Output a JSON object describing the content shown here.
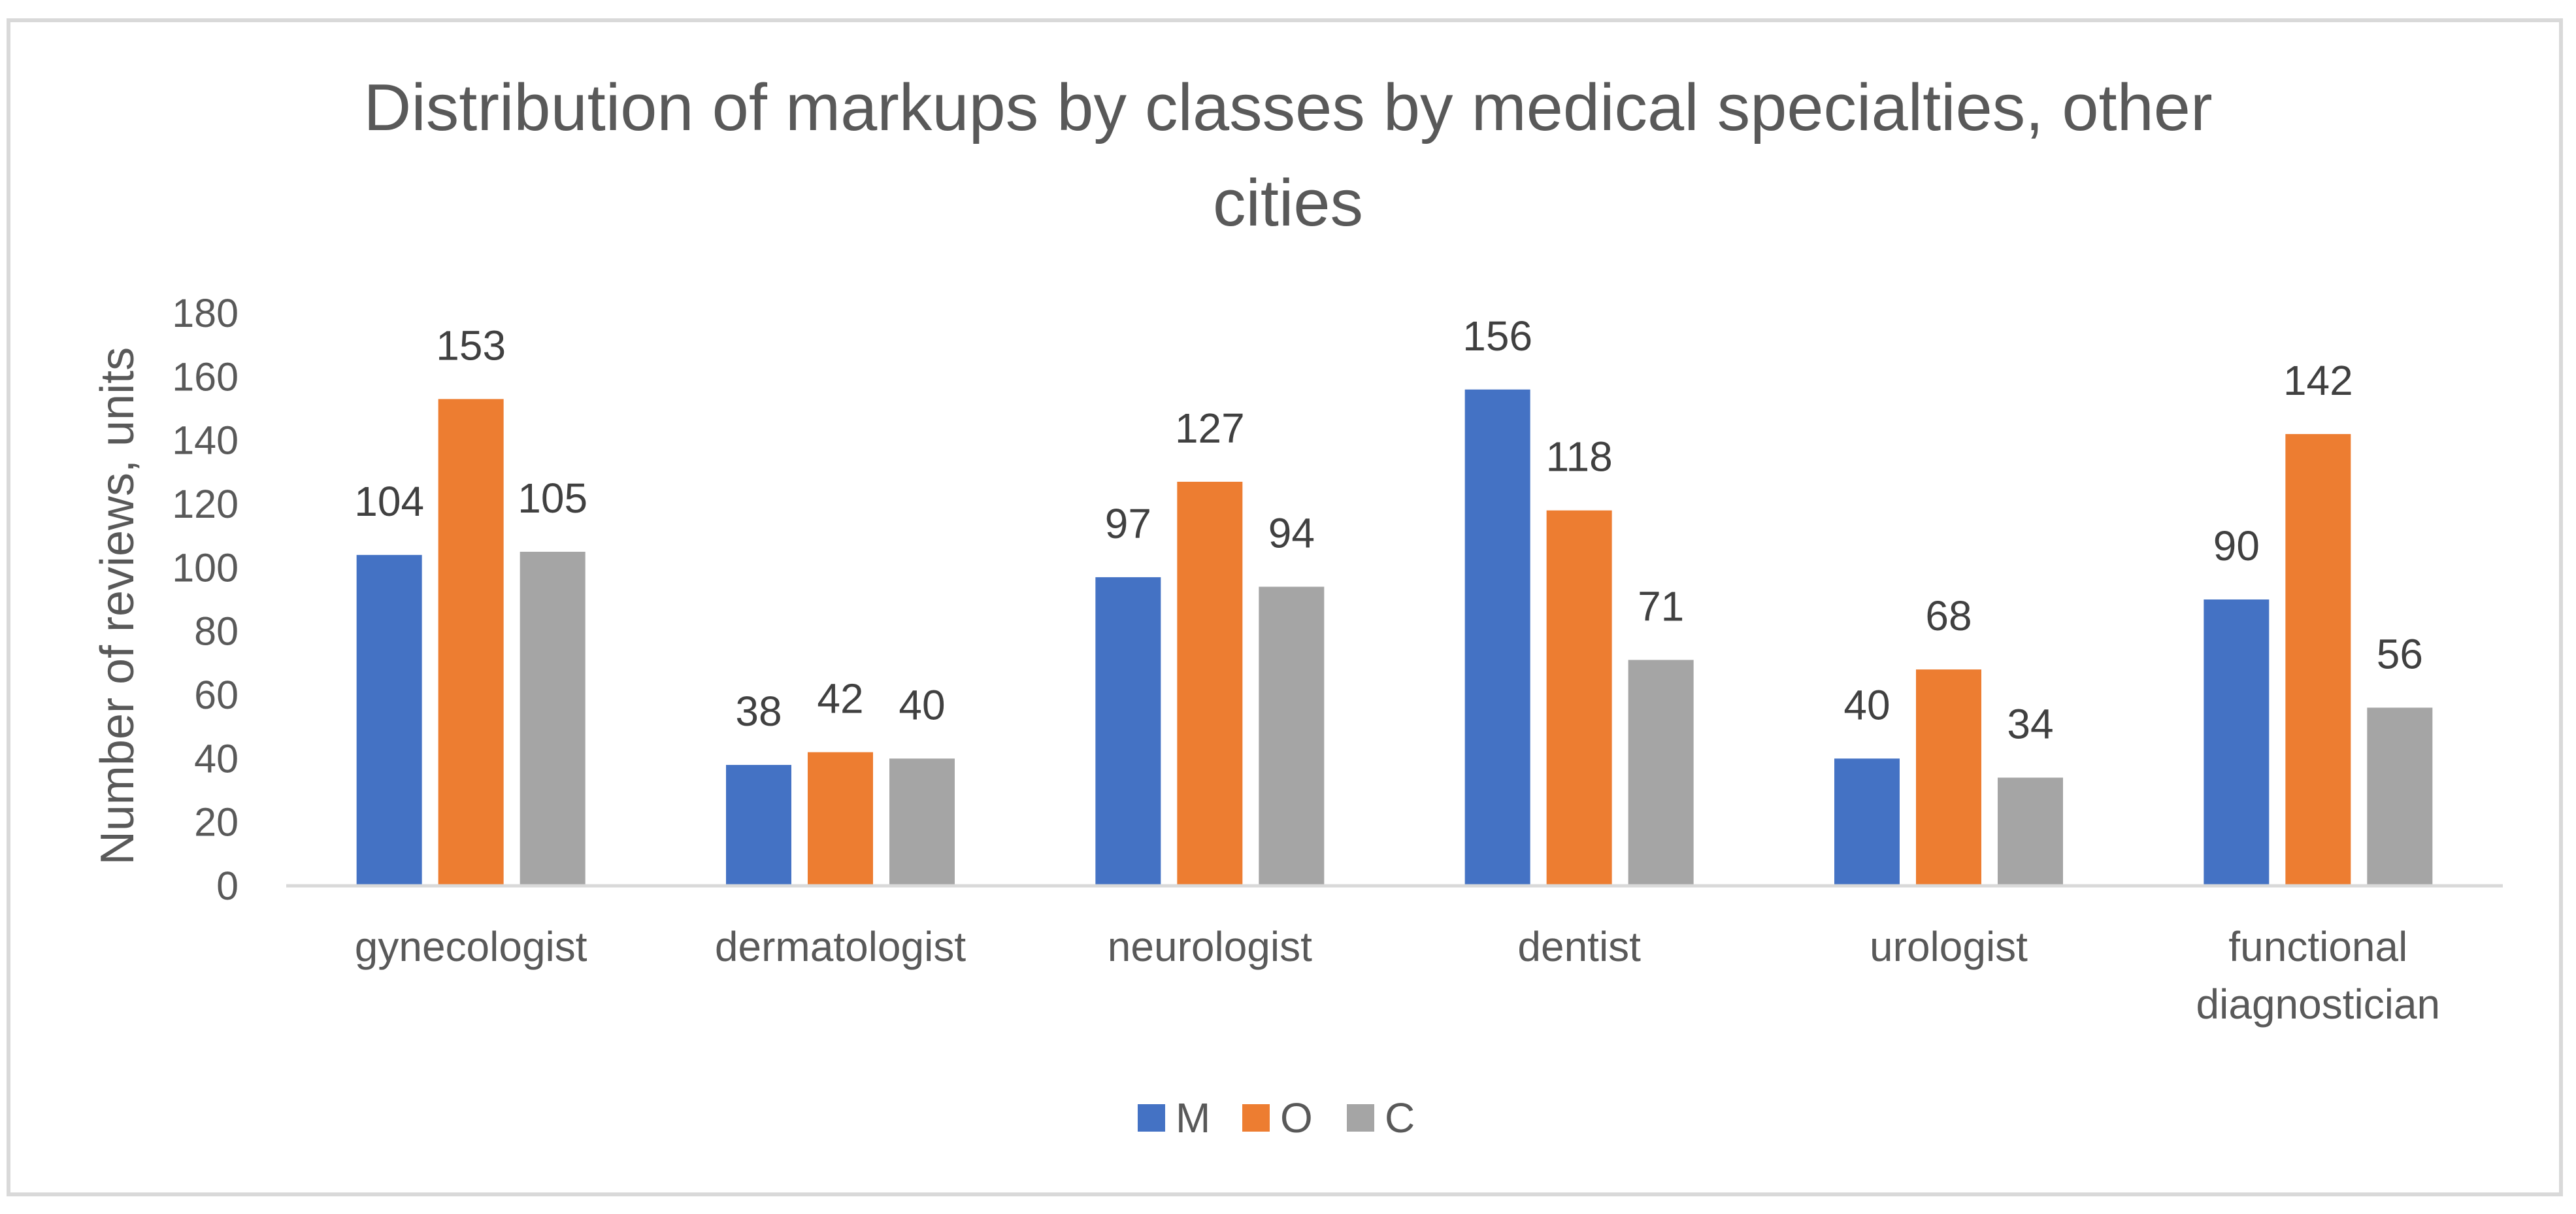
{
  "chart_data": {
    "type": "bar",
    "title_lines": [
      "Distribution of markups by classes by medical specialties, other",
      "cities"
    ],
    "xlabel": "",
    "ylabel": "Number of reviews, units",
    "categories": [
      [
        "gynecologist"
      ],
      [
        "dermatologist"
      ],
      [
        "neurologist"
      ],
      [
        "dentist"
      ],
      [
        "urologist"
      ],
      [
        "functional",
        "diagnostician"
      ]
    ],
    "series": [
      {
        "name": "M",
        "color": "#4472C4",
        "values": [
          104,
          38,
          97,
          156,
          40,
          90
        ]
      },
      {
        "name": "O",
        "color": "#ED7D31",
        "values": [
          153,
          42,
          127,
          118,
          68,
          142
        ]
      },
      {
        "name": "C",
        "color": "#A5A5A5",
        "values": [
          105,
          40,
          94,
          71,
          34,
          56
        ]
      }
    ],
    "ylim": [
      0,
      180
    ],
    "yticks": [
      0,
      20,
      40,
      60,
      80,
      100,
      120,
      140,
      160,
      180
    ],
    "grid": false,
    "legend_position": "bottom",
    "data_labels": true
  }
}
